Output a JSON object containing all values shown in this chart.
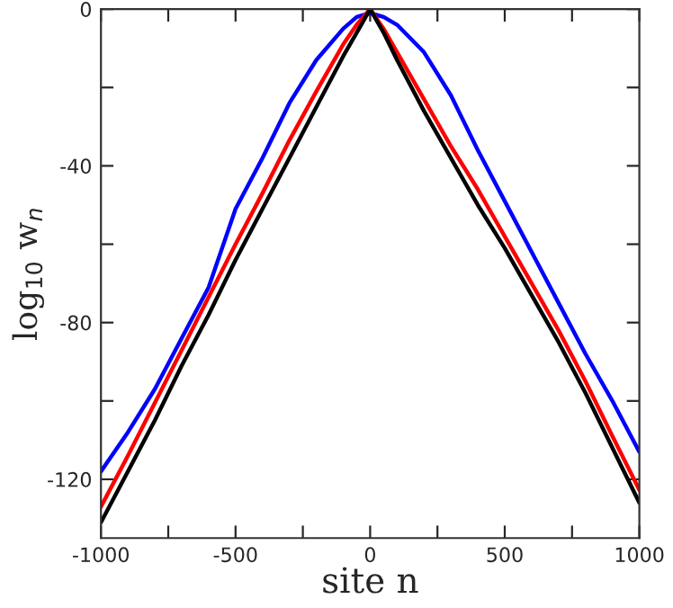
{
  "chart_data": {
    "type": "line",
    "xlabel": "site n",
    "ylabel": "log$_{10}$ w$_{n}$",
    "x": [
      -1000,
      -900,
      -800,
      -700,
      -600,
      -500,
      -400,
      -300,
      -200,
      -100,
      -50,
      0,
      50,
      100,
      200,
      300,
      400,
      500,
      600,
      700,
      800,
      900,
      1000
    ],
    "series": [
      {
        "color": "#0000ff",
        "values": [
          -118,
          -108,
          -97,
          -84,
          -71,
          -51,
          -38,
          -24,
          -13,
          -5,
          -2,
          -1,
          -2,
          -4,
          -11,
          -22,
          -36,
          -49,
          -62,
          -75,
          -88,
          -100,
          -113
        ]
      },
      {
        "color": "#ff0000",
        "values": [
          -127,
          -114,
          -100.5,
          -87,
          -73.5,
          -60,
          -47,
          -33.5,
          -21,
          -9,
          -4,
          0,
          -5,
          -11,
          -23,
          -35,
          -46,
          -58,
          -70,
          -82,
          -95,
          -109,
          -122.7
        ]
      },
      {
        "color": "#000000",
        "values": [
          -131,
          -118,
          -105,
          -91,
          -78,
          -64,
          -51,
          -38,
          -25,
          -12,
          -6,
          0,
          -6,
          -13,
          -26,
          -38,
          -50,
          -61,
          -73,
          -85,
          -98,
          -112,
          -126
        ]
      }
    ],
    "xlim": [
      -1000,
      1000
    ],
    "ylim": [
      -135,
      0
    ],
    "xticks": [
      -1000,
      {
        "value": -750,
        "label": null
      },
      -500,
      {
        "value": -250,
        "label": null
      },
      0,
      {
        "value": 250,
        "label": null
      },
      500,
      {
        "value": 750,
        "label": null
      },
      1000
    ],
    "yticks": [
      {
        "value": -120,
        "label": "-120"
      },
      {
        "value": -100,
        "label": null
      },
      {
        "value": -80,
        "label": "-80"
      },
      {
        "value": -60,
        "label": null
      },
      {
        "value": -40,
        "label": "-40"
      },
      {
        "value": -20,
        "label": null
      },
      0
    ],
    "grid": false,
    "legend": false,
    "marker": "none",
    "line_style": "solid"
  }
}
